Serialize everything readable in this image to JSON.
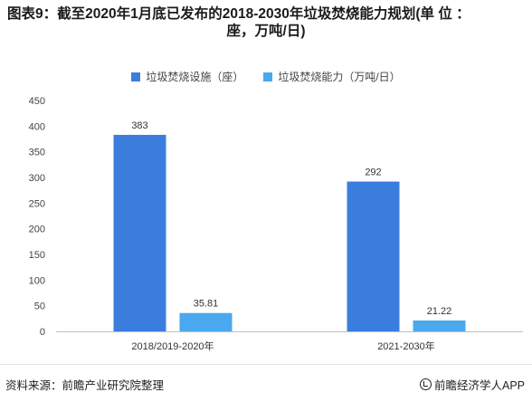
{
  "title": {
    "line1": "图表9：截至2020年1月底已发布的2018-2030年垃圾焚烧能力规划(单 位 ：",
    "line2": "座，万吨/日)"
  },
  "footer": {
    "source": "资料来源：前瞻产业研究院整理",
    "brand": "前瞻经济学人APP"
  },
  "chart_data": {
    "type": "bar",
    "categories": [
      "2018/2019-2020年",
      "2021-2030年"
    ],
    "series": [
      {
        "name": "垃圾焚烧设施（座）",
        "values": [
          383,
          292
        ],
        "labels": [
          "383",
          "292"
        ],
        "color": "#3b7ddd"
      },
      {
        "name": "垃圾焚烧能力（万吨/日）",
        "values": [
          35.81,
          21.22
        ],
        "labels": [
          "35.81",
          "21.22"
        ],
        "color": "#4aa8ee"
      }
    ],
    "ylim": [
      0,
      450
    ],
    "yticks": [
      0,
      50,
      100,
      150,
      200,
      250,
      300,
      350,
      400,
      450
    ],
    "ytick_labels": [
      "0",
      "50",
      "100",
      "150",
      "200",
      "250",
      "300",
      "350",
      "400",
      "450"
    ],
    "legend_position": "top-center",
    "grid": false
  }
}
